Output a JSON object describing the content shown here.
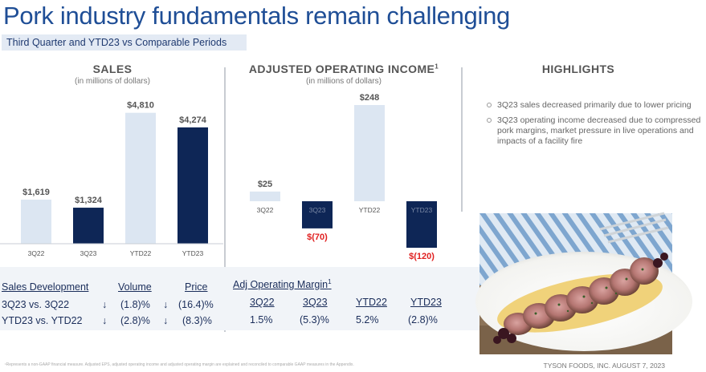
{
  "title": "Pork industry fundamentals remain challenging",
  "subtitle": "Third Quarter and YTD23 vs Comparable Periods",
  "chart_data": [
    {
      "type": "bar",
      "title": "SALES",
      "subtitle": "(in millions of dollars)",
      "categories": [
        "3Q22",
        "3Q23",
        "YTD22",
        "YTD23"
      ],
      "values": [
        1619,
        1324,
        4810,
        4274
      ],
      "value_labels": [
        "$1,619",
        "$1,324",
        "$4,810",
        "$4,274"
      ],
      "colors": [
        "#dce6f2",
        "#0e2656",
        "#dce6f2",
        "#0e2656"
      ],
      "ylim": [
        0,
        5200
      ]
    },
    {
      "type": "bar",
      "title": "ADJUSTED OPERATING INCOME",
      "title_sup": "1",
      "subtitle": "(in millions of dollars)",
      "categories": [
        "3Q22",
        "3Q23",
        "YTD22",
        "YTD23"
      ],
      "values": [
        25,
        -70,
        248,
        -120
      ],
      "value_labels": [
        "$25",
        "$(70)",
        "$248",
        "$(120)"
      ],
      "colors": [
        "#dce6f2",
        "#0e2656",
        "#dce6f2",
        "#0e2656"
      ],
      "negative_label_color": "#e02020",
      "ylim": [
        -130,
        260
      ]
    }
  ],
  "sales_table": {
    "headers": [
      "Sales Development",
      "Volume",
      "Price"
    ],
    "rows": [
      {
        "label": "3Q23 vs. 3Q22",
        "vol_arrow": "↓",
        "volume": "(1.8)%",
        "price_arrow": "↓",
        "price": "(16.4)%"
      },
      {
        "label": "YTD23 vs. YTD22",
        "vol_arrow": "↓",
        "volume": "(2.8)%",
        "price_arrow": "↓",
        "price": "(8.3)%"
      }
    ]
  },
  "margin_table": {
    "title": "Adj Operating Margin",
    "title_sup": "1",
    "headers": [
      "3Q22",
      "3Q23",
      "YTD22",
      "YTD23"
    ],
    "values": [
      "1.5%",
      "(5.3)%",
      "5.2%",
      "(2.8)%"
    ]
  },
  "highlights": {
    "title": "HIGHLIGHTS",
    "items": [
      "3Q23 sales decreased primarily due to lower pricing",
      "3Q23 operating income decreased due to compressed pork margins, market pressure in live operations and impacts of a facility fire"
    ]
  },
  "footer": {
    "note": "¹Represents a non-GAAP financial measure. Adjusted EPS, adjusted operating income and adjusted operating margin are explained and reconciled to comparable GAAP measures in the Appendix.",
    "company": "TYSON FOODS, INC. AUGUST 7, 2023"
  }
}
